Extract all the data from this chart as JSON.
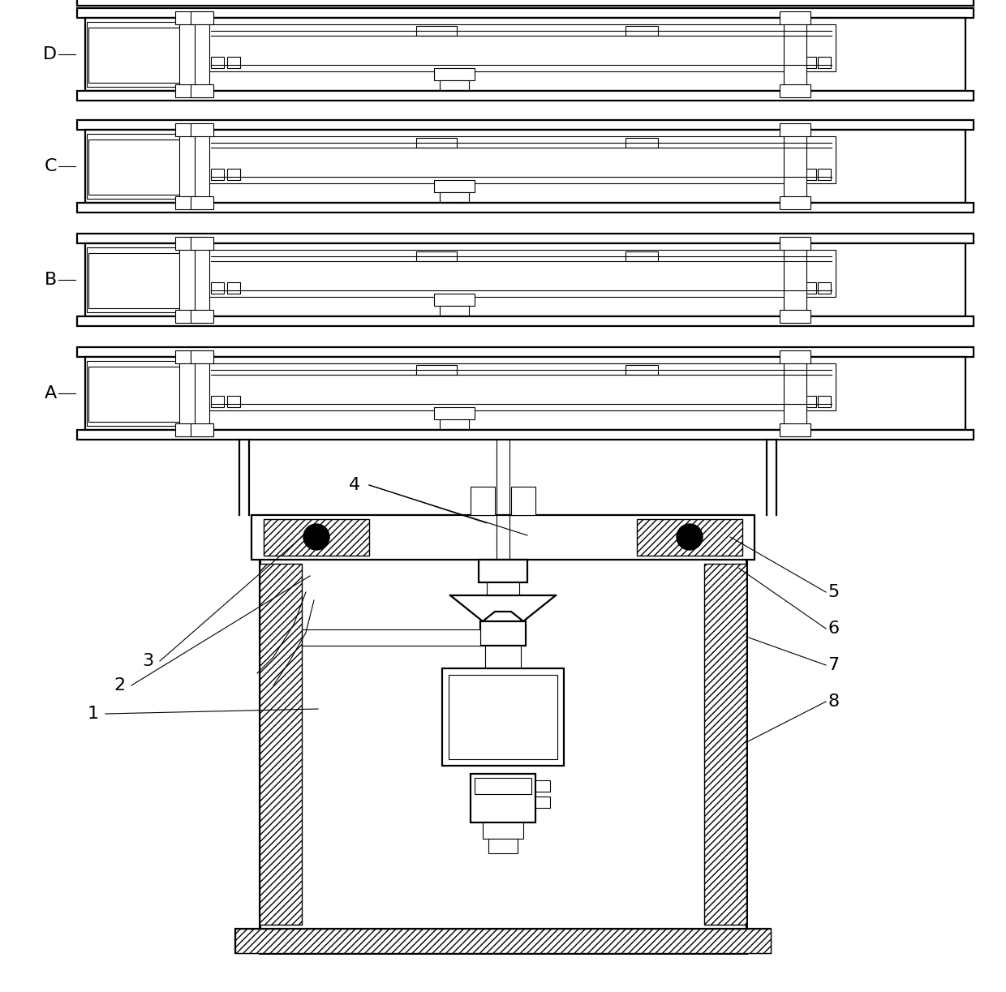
{
  "bg_color": "#ffffff",
  "line_color": "#000000",
  "fig_width": 12.4,
  "fig_height": 12.23,
  "dpi": 100,
  "layer_labels": [
    "A",
    "B",
    "C",
    "D"
  ],
  "num_labels_left": [
    "1",
    "2",
    "3"
  ],
  "num_labels_right": [
    "5",
    "6",
    "7",
    "8"
  ],
  "label_4": "4",
  "lw_main": 1.6,
  "lw_thin": 0.8,
  "lw_thick": 2.2,
  "label_fontsize": 16
}
